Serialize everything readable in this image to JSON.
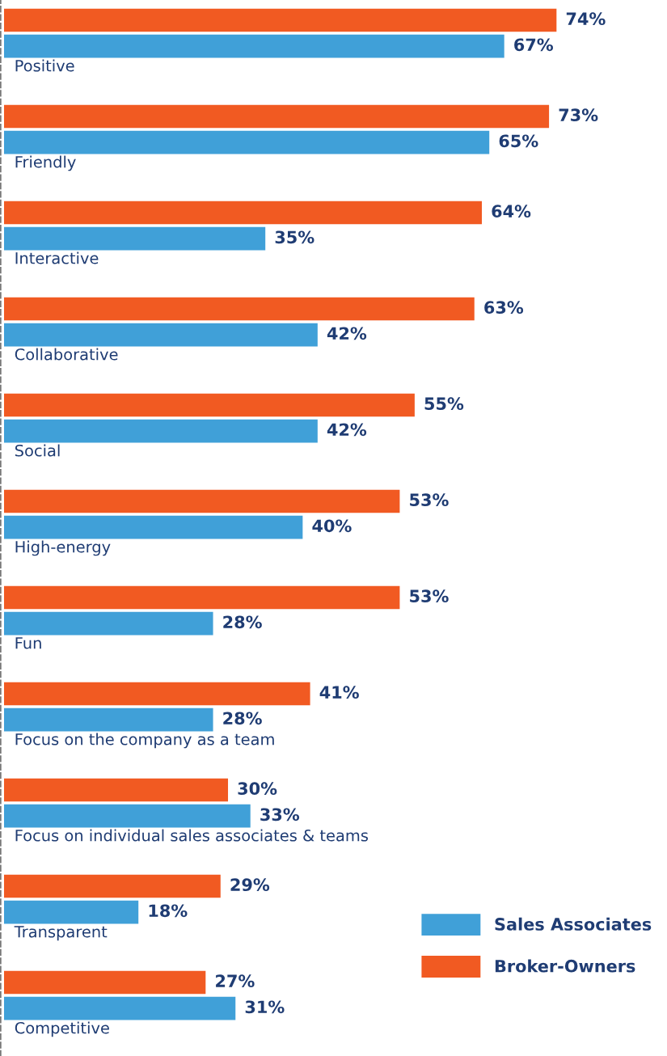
{
  "chart_data": {
    "type": "bar",
    "orientation": "horizontal",
    "categories": [
      "Positive",
      "Friendly",
      "Interactive",
      "Collaborative",
      "Social",
      "High-energy",
      "Fun",
      "Focus on the company as a team",
      "Focus on individual sales associates & teams",
      "Transparent",
      "Competitive"
    ],
    "series": [
      {
        "name": "Broker-Owners",
        "color": "#f15a22",
        "values": [
          74,
          73,
          64,
          63,
          55,
          53,
          53,
          41,
          30,
          29,
          27
        ],
        "value_labels": [
          "74%",
          "73%",
          "64%",
          "63%",
          "55%",
          "53%",
          "53%",
          "41%",
          "30%",
          "29%",
          "27%"
        ]
      },
      {
        "name": "Sales Associates",
        "color": "#40a0d8",
        "values": [
          67,
          65,
          35,
          42,
          42,
          40,
          28,
          28,
          33,
          18,
          31
        ],
        "value_labels": [
          "67%",
          "65%",
          "35%",
          "42%",
          "42%",
          "40%",
          "28%",
          "28%",
          "33%",
          "18%",
          "31%"
        ]
      }
    ],
    "legend": "bottom right"
  }
}
